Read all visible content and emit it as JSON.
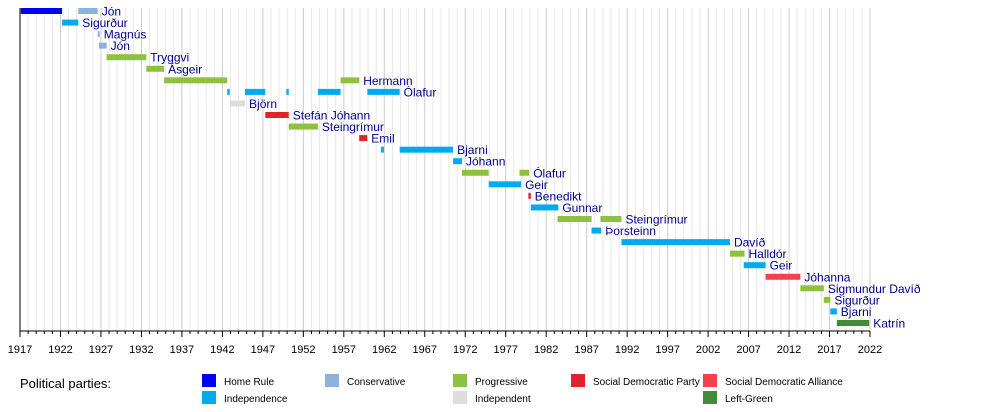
{
  "chart_data": {
    "type": "timeline",
    "xlim": [
      1917,
      2022
    ],
    "x_ticks": [
      1917,
      1922,
      1927,
      1932,
      1937,
      1942,
      1947,
      1952,
      1957,
      1962,
      1967,
      1972,
      1977,
      1982,
      1987,
      1992,
      1997,
      2002,
      2007,
      2012,
      2017,
      2022
    ],
    "grid": "vertical, yearly minor, 5-year major",
    "legend_title": "Political parties:",
    "legend_placement": "bottom",
    "parties": [
      {
        "key": "HR",
        "name": "Home Rule",
        "color": "#0000ff"
      },
      {
        "key": "IND",
        "name": "Independence",
        "color": "#00aaef"
      },
      {
        "key": "CON",
        "name": "Conservative",
        "color": "#8eb1dc"
      },
      {
        "key": "PRO",
        "name": "Progressive",
        "color": "#8dc13f"
      },
      {
        "key": "NP",
        "name": "Independent",
        "color": "#dddddd"
      },
      {
        "key": "SDP",
        "name": "Social Democratic Party",
        "color": "#e0232b"
      },
      {
        "key": "SDA",
        "name": "Social Democratic Alliance",
        "color": "#f5414d"
      },
      {
        "key": "LG",
        "name": "Left-Green",
        "color": "#438a3a"
      }
    ],
    "rows": [
      {
        "name": "Jón",
        "terms": [
          [
            1917.1,
            1922.2,
            "HR"
          ],
          [
            1924.2,
            1926.6,
            "CON"
          ]
        ]
      },
      {
        "name": "Sigurður",
        "terms": [
          [
            1922.2,
            1924.2,
            "IND"
          ]
        ]
      },
      {
        "name": "Magnús",
        "terms": [
          [
            1926.6,
            1926.75,
            "CON"
          ]
        ]
      },
      {
        "name": "Jón",
        "terms": [
          [
            1926.75,
            1927.7,
            "CON"
          ]
        ]
      },
      {
        "name": "Tryggvi",
        "terms": [
          [
            1927.7,
            1932.6,
            "PRO"
          ]
        ]
      },
      {
        "name": "Ásgeir",
        "terms": [
          [
            1932.6,
            1934.8,
            "PRO"
          ]
        ]
      },
      {
        "name": "Hermann",
        "terms": [
          [
            1934.8,
            1942.6,
            "PRO"
          ],
          [
            1956.6,
            1958.9,
            "PRO"
          ]
        ]
      },
      {
        "name": "Ólafur",
        "terms": [
          [
            1942.6,
            1942.9,
            "IND"
          ],
          [
            1944.8,
            1947.3,
            "IND"
          ],
          [
            1949.9,
            1950.2,
            "IND"
          ],
          [
            1953.8,
            1956.6,
            "IND"
          ],
          [
            1959.9,
            1963.9,
            "IND"
          ]
        ]
      },
      {
        "name": "Björn",
        "terms": [
          [
            1942.9,
            1944.8,
            "NP"
          ]
        ]
      },
      {
        "name": "Stefán Jóhann",
        "terms": [
          [
            1947.3,
            1950.2,
            "SDP"
          ]
        ]
      },
      {
        "name": "Steingrímur",
        "terms": [
          [
            1950.2,
            1953.8,
            "PRO"
          ]
        ]
      },
      {
        "name": "Emil",
        "terms": [
          [
            1958.9,
            1959.9,
            "SDP"
          ]
        ]
      },
      {
        "name": "Bjarni",
        "terms": [
          [
            1961.6,
            1961.95,
            "IND"
          ],
          [
            1963.9,
            1970.5,
            "IND"
          ]
        ]
      },
      {
        "name": "Jóhann",
        "terms": [
          [
            1970.5,
            1971.6,
            "IND"
          ]
        ]
      },
      {
        "name": "Ólafur",
        "terms": [
          [
            1971.6,
            1974.9,
            "PRO"
          ],
          [
            1978.7,
            1979.9,
            "PRO"
          ]
        ]
      },
      {
        "name": "Geir",
        "terms": [
          [
            1974.9,
            1978.9,
            "IND"
          ]
        ]
      },
      {
        "name": "Benedikt",
        "terms": [
          [
            1979.8,
            1980.1,
            "SDP"
          ]
        ]
      },
      {
        "name": "Gunnar",
        "terms": [
          [
            1980.1,
            1983.5,
            "IND"
          ]
        ]
      },
      {
        "name": "Steingrímur",
        "terms": [
          [
            1983.4,
            1987.6,
            "PRO"
          ],
          [
            1988.7,
            1991.3,
            "PRO"
          ]
        ]
      },
      {
        "name": "Þorsteinn",
        "terms": [
          [
            1987.6,
            1988.8,
            "IND"
          ]
        ]
      },
      {
        "name": "Davíð",
        "terms": [
          [
            1991.3,
            2004.7,
            "IND"
          ]
        ]
      },
      {
        "name": "Halldór",
        "terms": [
          [
            2004.7,
            2006.5,
            "PRO"
          ]
        ]
      },
      {
        "name": "Geir",
        "terms": [
          [
            2006.4,
            2009.1,
            "IND"
          ]
        ]
      },
      {
        "name": "Jóhanna",
        "terms": [
          [
            2009.1,
            2013.4,
            "SDA"
          ]
        ]
      },
      {
        "name": "Sigmundur Davíð",
        "terms": [
          [
            2013.4,
            2016.3,
            "PRO"
          ]
        ]
      },
      {
        "name": "Sigurður",
        "terms": [
          [
            2016.3,
            2017.1,
            "PRO"
          ]
        ]
      },
      {
        "name": "Bjarni",
        "terms": [
          [
            2017.1,
            2017.9,
            "IND"
          ]
        ]
      },
      {
        "name": "Katrín",
        "terms": [
          [
            2017.9,
            2021.9,
            "LG"
          ]
        ]
      }
    ]
  }
}
